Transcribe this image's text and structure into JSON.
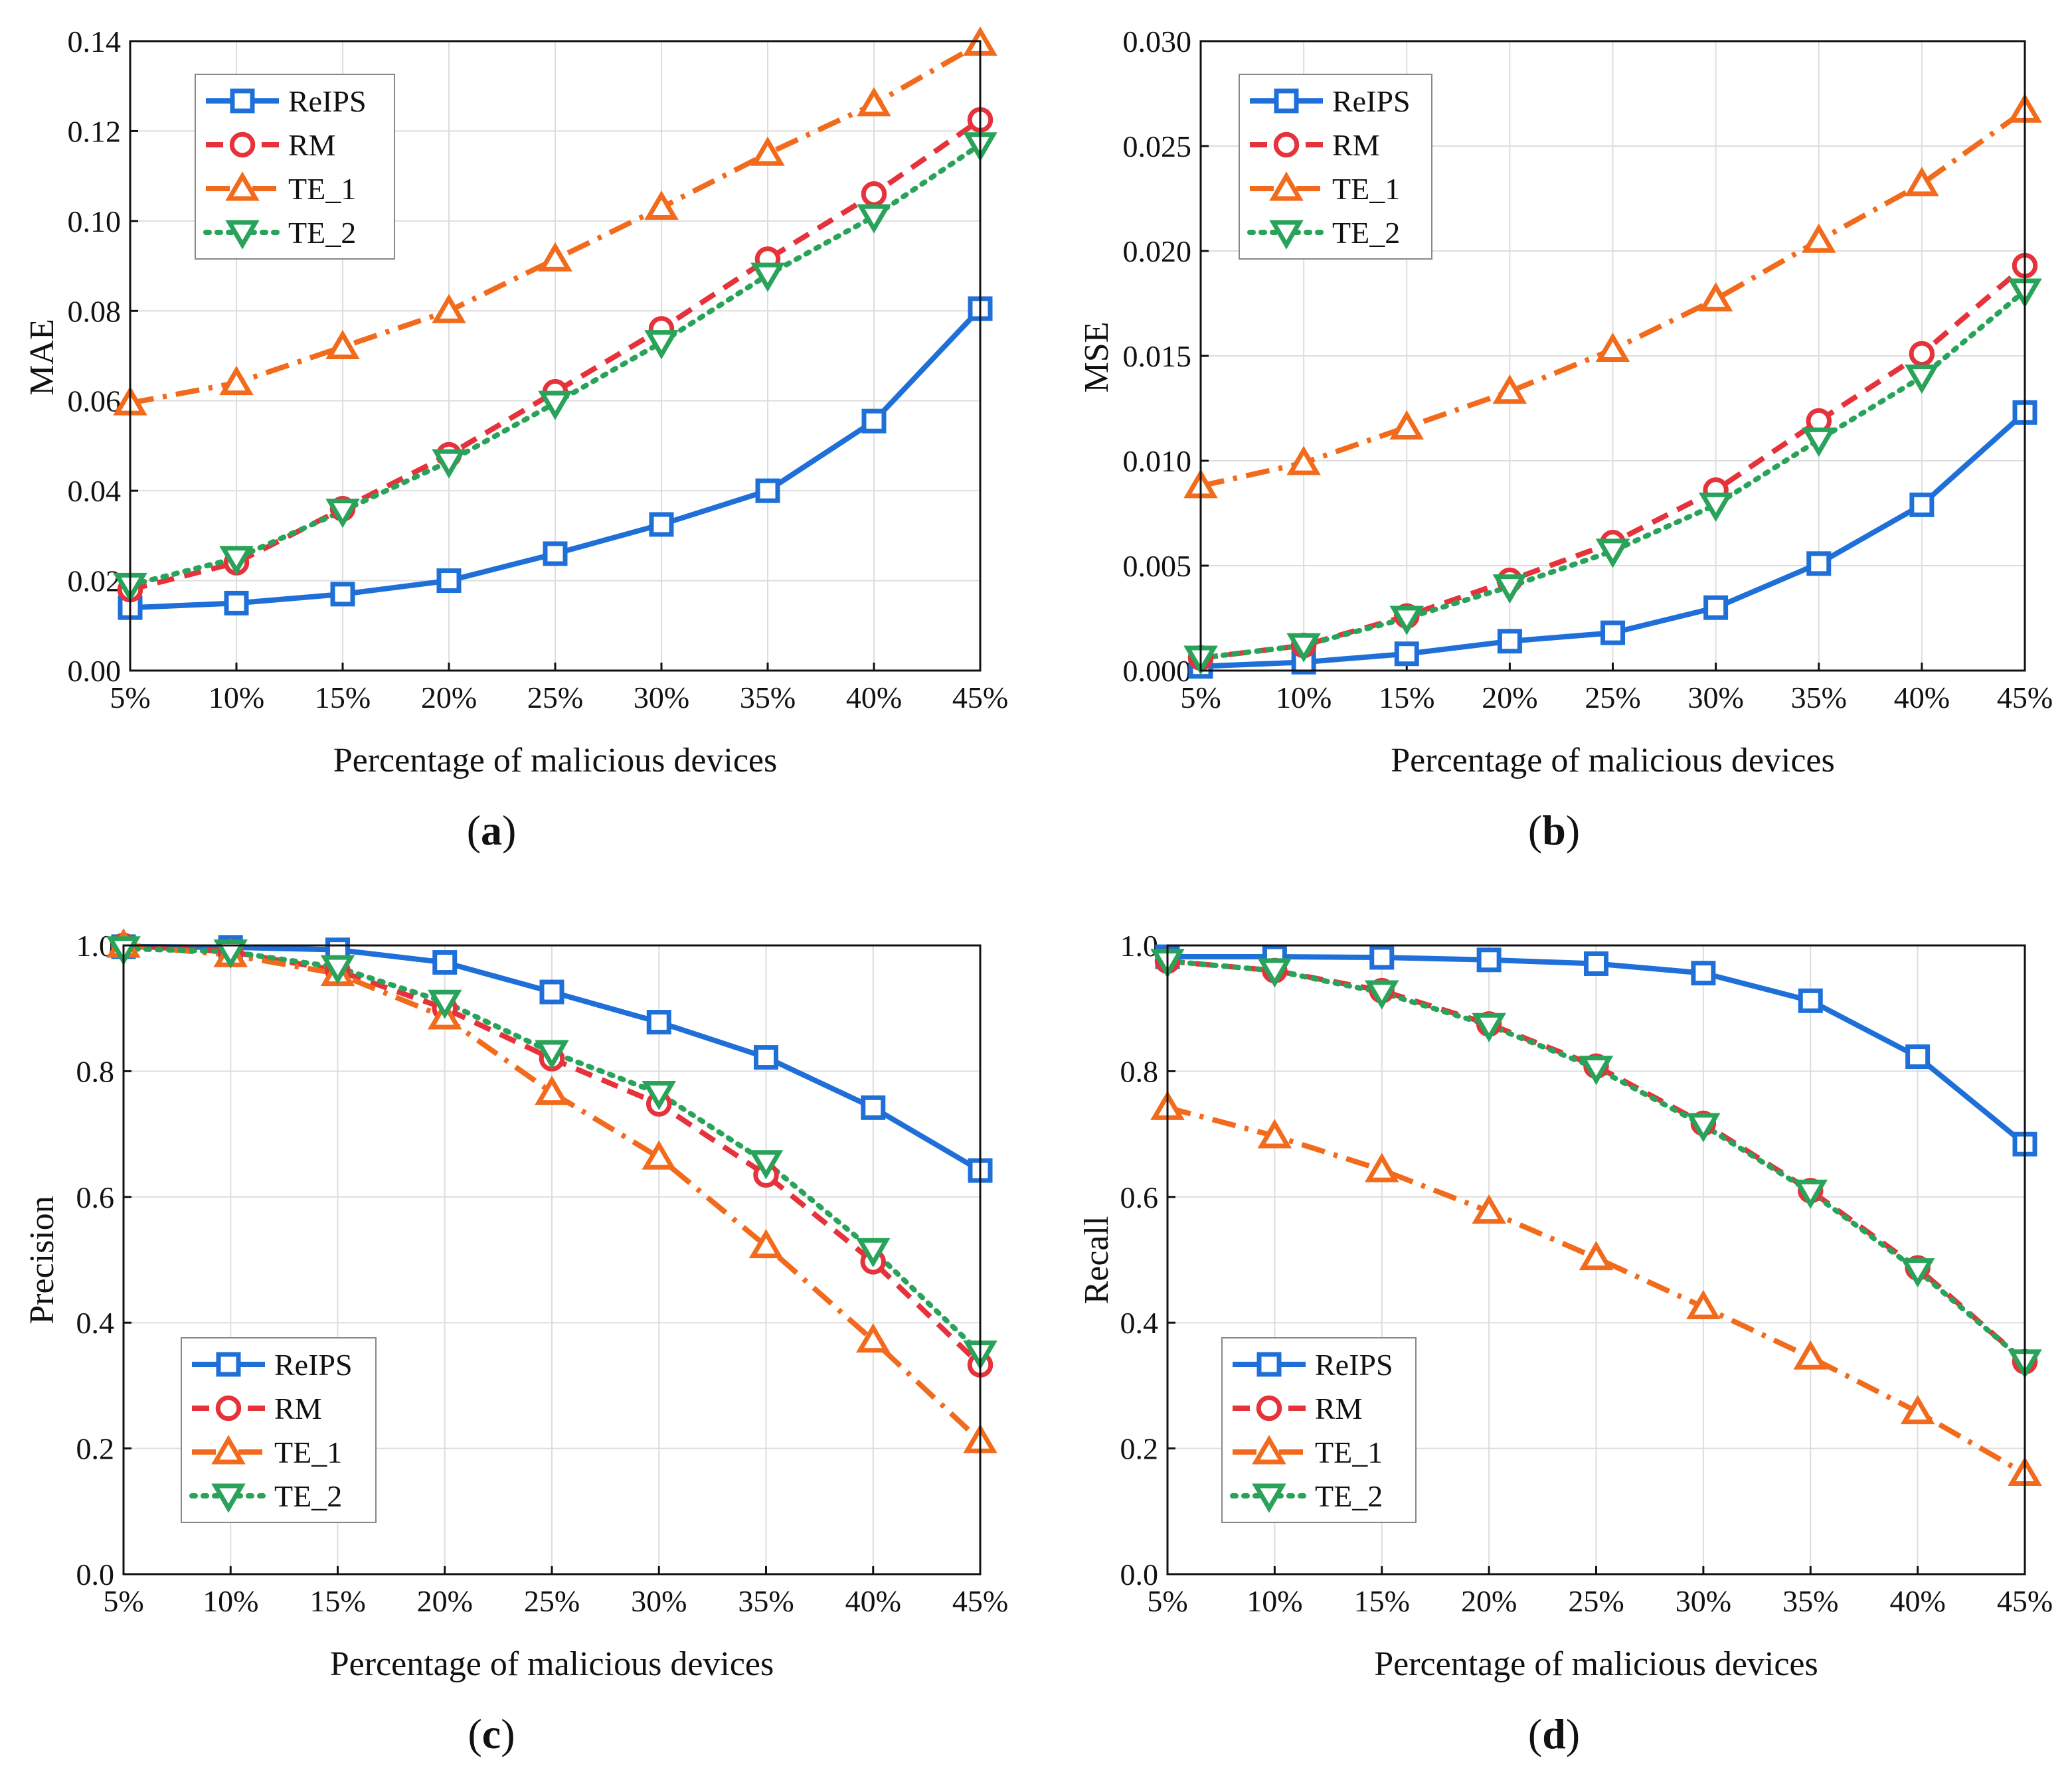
{
  "colors": {
    "ReIPS": "#1f6fd8",
    "RM": "#e5323b",
    "TE_1": "#f26b1d",
    "TE_2": "#2aa35a"
  },
  "chart_data": [
    {
      "type": "line",
      "panel": "(a)",
      "panel_letter": "a",
      "xlabel": "Percentage of malicious devices",
      "ylabel": "MAE",
      "categories": [
        "5%",
        "10%",
        "15%",
        "20%",
        "25%",
        "30%",
        "35%",
        "40%",
        "45%"
      ],
      "ylim": [
        0,
        0.14
      ],
      "yticks": [
        "0.00",
        "0.02",
        "0.04",
        "0.06",
        "0.08",
        "0.10",
        "0.12",
        "0.14"
      ],
      "legend_position": "top-left",
      "series": [
        {
          "name": "ReIPS",
          "marker": "square",
          "dash": "solid",
          "values": [
            0.014,
            0.015,
            0.017,
            0.02,
            0.026,
            0.0325,
            0.04,
            0.0555,
            0.0805
          ]
        },
        {
          "name": "RM",
          "marker": "circle",
          "dash": "dashed",
          "values": [
            0.018,
            0.024,
            0.036,
            0.048,
            0.062,
            0.076,
            0.0915,
            0.106,
            0.1225
          ]
        },
        {
          "name": "TE_1",
          "marker": "triangle-up",
          "dash": "dashdot",
          "values": [
            0.0595,
            0.064,
            0.072,
            0.08,
            0.0915,
            0.103,
            0.115,
            0.126,
            0.1395
          ]
        },
        {
          "name": "TE_2",
          "marker": "triangle-down",
          "dash": "dotted",
          "values": [
            0.019,
            0.025,
            0.0355,
            0.0465,
            0.0595,
            0.073,
            0.088,
            0.101,
            0.117
          ]
        }
      ]
    },
    {
      "type": "line",
      "panel": "(b)",
      "panel_letter": "b",
      "xlabel": "Percentage of malicious devices",
      "ylabel": "MSE",
      "categories": [
        "5%",
        "10%",
        "15%",
        "20%",
        "25%",
        "30%",
        "35%",
        "40%",
        "45%"
      ],
      "ylim": [
        0,
        0.03
      ],
      "yticks": [
        "0.000",
        "0.005",
        "0.010",
        "0.015",
        "0.020",
        "0.025",
        "0.030"
      ],
      "legend_position": "top-left",
      "series": [
        {
          "name": "ReIPS",
          "marker": "square",
          "dash": "solid",
          "values": [
            0.0002,
            0.0004,
            0.0008,
            0.0014,
            0.0018,
            0.003,
            0.0051,
            0.0079,
            0.0123
          ]
        },
        {
          "name": "RM",
          "marker": "circle",
          "dash": "dashed",
          "values": [
            0.0006,
            0.0012,
            0.0026,
            0.0043,
            0.0061,
            0.0086,
            0.0119,
            0.0151,
            0.0193
          ]
        },
        {
          "name": "TE_1",
          "marker": "triangle-up",
          "dash": "dashdot",
          "values": [
            0.0088,
            0.0099,
            0.0116,
            0.0133,
            0.0153,
            0.0177,
            0.0205,
            0.0232,
            0.0267
          ]
        },
        {
          "name": "TE_2",
          "marker": "triangle-down",
          "dash": "dotted",
          "values": [
            0.0006,
            0.0012,
            0.0025,
            0.004,
            0.0057,
            0.0079,
            0.011,
            0.014,
            0.0181
          ]
        }
      ]
    },
    {
      "type": "line",
      "panel": "(c)",
      "panel_letter": "c",
      "xlabel": "Percentage of malicious devices",
      "ylabel": "Precision",
      "categories": [
        "5%",
        "10%",
        "15%",
        "20%",
        "25%",
        "30%",
        "35%",
        "40%",
        "45%"
      ],
      "ylim": [
        0,
        1.0
      ],
      "yticks": [
        "0.0",
        "0.2",
        "0.4",
        "0.6",
        "0.8",
        "1.0"
      ],
      "legend_position": "bottom-left",
      "series": [
        {
          "name": "ReIPS",
          "marker": "square",
          "dash": "solid",
          "values": [
            0.998,
            0.997,
            0.993,
            0.973,
            0.926,
            0.878,
            0.822,
            0.742,
            0.642
          ]
        },
        {
          "name": "RM",
          "marker": "circle",
          "dash": "dashed",
          "values": [
            1.0,
            0.99,
            0.96,
            0.9,
            0.82,
            0.748,
            0.635,
            0.497,
            0.333
          ]
        },
        {
          "name": "TE_1",
          "marker": "triangle-up",
          "dash": "dashdot",
          "values": [
            1.0,
            0.985,
            0.955,
            0.886,
            0.766,
            0.663,
            0.522,
            0.372,
            0.212
          ]
        },
        {
          "name": "TE_2",
          "marker": "triangle-down",
          "dash": "dotted",
          "values": [
            0.995,
            0.99,
            0.965,
            0.91,
            0.83,
            0.765,
            0.655,
            0.515,
            0.352
          ]
        }
      ]
    },
    {
      "type": "line",
      "panel": "(d)",
      "panel_letter": "d",
      "xlabel": "Percentage of malicious devices",
      "ylabel": "Recall",
      "categories": [
        "5%",
        "10%",
        "15%",
        "20%",
        "25%",
        "30%",
        "35%",
        "40%",
        "45%"
      ],
      "ylim": [
        0,
        1.0
      ],
      "yticks": [
        "0.0",
        "0.2",
        "0.4",
        "0.6",
        "0.8",
        "1.0"
      ],
      "legend_position": "bottom-left",
      "series": [
        {
          "name": "ReIPS",
          "marker": "square",
          "dash": "solid",
          "values": [
            0.982,
            0.982,
            0.981,
            0.977,
            0.971,
            0.956,
            0.912,
            0.823,
            0.684
          ]
        },
        {
          "name": "RM",
          "marker": "circle",
          "dash": "dashed",
          "values": [
            0.975,
            0.96,
            0.928,
            0.875,
            0.808,
            0.717,
            0.61,
            0.487,
            0.338
          ]
        },
        {
          "name": "TE_1",
          "marker": "triangle-up",
          "dash": "dashdot",
          "values": [
            0.742,
            0.697,
            0.643,
            0.577,
            0.503,
            0.425,
            0.345,
            0.258,
            0.16
          ]
        },
        {
          "name": "TE_2",
          "marker": "triangle-down",
          "dash": "dotted",
          "values": [
            0.975,
            0.96,
            0.925,
            0.873,
            0.805,
            0.714,
            0.608,
            0.483,
            0.338
          ]
        }
      ]
    }
  ]
}
